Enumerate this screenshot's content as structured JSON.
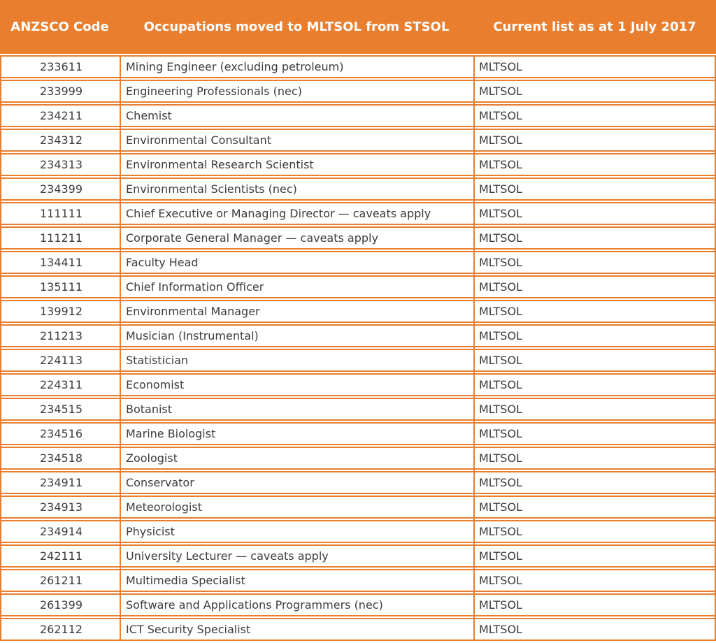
{
  "colors": {
    "accent_orange": "#E87E2E",
    "header_text": "#FFFFFF",
    "cell_text": "#3C3C3C",
    "row_background": "#FFFFFF"
  },
  "header": {
    "columns": [
      "ANZSCO Code",
      "Occupations moved to MLTSOL from STSOL",
      "Current list as at 1 July 2017"
    ]
  },
  "table": {
    "rows": [
      {
        "code": "233611",
        "occupation": "Mining Engineer (excluding petroleum)",
        "list": "MLTSOL"
      },
      {
        "code": "233999",
        "occupation": "Engineering Professionals (nec)",
        "list": "MLTSOL"
      },
      {
        "code": "234211",
        "occupation": "Chemist",
        "list": "MLTSOL"
      },
      {
        "code": "234312",
        "occupation": "Environmental Consultant",
        "list": "MLTSOL"
      },
      {
        "code": "234313",
        "occupation": "Environmental Research Scientist",
        "list": "MLTSOL"
      },
      {
        "code": "234399",
        "occupation": "Environmental Scientists (nec)",
        "list": "MLTSOL"
      },
      {
        "code": "111111",
        "occupation": "Chief Executive or Managing Director — caveats apply",
        "list": "MLTSOL"
      },
      {
        "code": "111211",
        "occupation": "Corporate General Manager — caveats apply",
        "list": "MLTSOL"
      },
      {
        "code": "134411",
        "occupation": "Faculty Head",
        "list": "MLTSOL"
      },
      {
        "code": "135111",
        "occupation": "Chief Information Officer",
        "list": "MLTSOL"
      },
      {
        "code": "139912",
        "occupation": "Environmental Manager",
        "list": "MLTSOL"
      },
      {
        "code": "211213",
        "occupation": "Musician (Instrumental)",
        "list": "MLTSOL"
      },
      {
        "code": "224113",
        "occupation": "Statistician",
        "list": "MLTSOL"
      },
      {
        "code": "224311",
        "occupation": "Economist",
        "list": "MLTSOL"
      },
      {
        "code": "234515",
        "occupation": "Botanist",
        "list": "MLTSOL"
      },
      {
        "code": "234516",
        "occupation": "Marine Biologist",
        "list": "MLTSOL"
      },
      {
        "code": "234518",
        "occupation": "Zoologist",
        "list": "MLTSOL"
      },
      {
        "code": "234911",
        "occupation": "Conservator",
        "list": "MLTSOL"
      },
      {
        "code": "234913",
        "occupation": "Meteorologist",
        "list": "MLTSOL"
      },
      {
        "code": "234914",
        "occupation": "Physicist",
        "list": "MLTSOL"
      },
      {
        "code": "242111",
        "occupation": "University Lecturer — caveats apply",
        "list": "MLTSOL"
      },
      {
        "code": "261211",
        "occupation": "Multimedia Specialist",
        "list": "MLTSOL"
      },
      {
        "code": "261399",
        "occupation": "Software and Applications Programmers (nec)",
        "list": "MLTSOL"
      },
      {
        "code": "262112",
        "occupation": "ICT Security Specialist",
        "list": "MLTSOL"
      }
    ]
  }
}
